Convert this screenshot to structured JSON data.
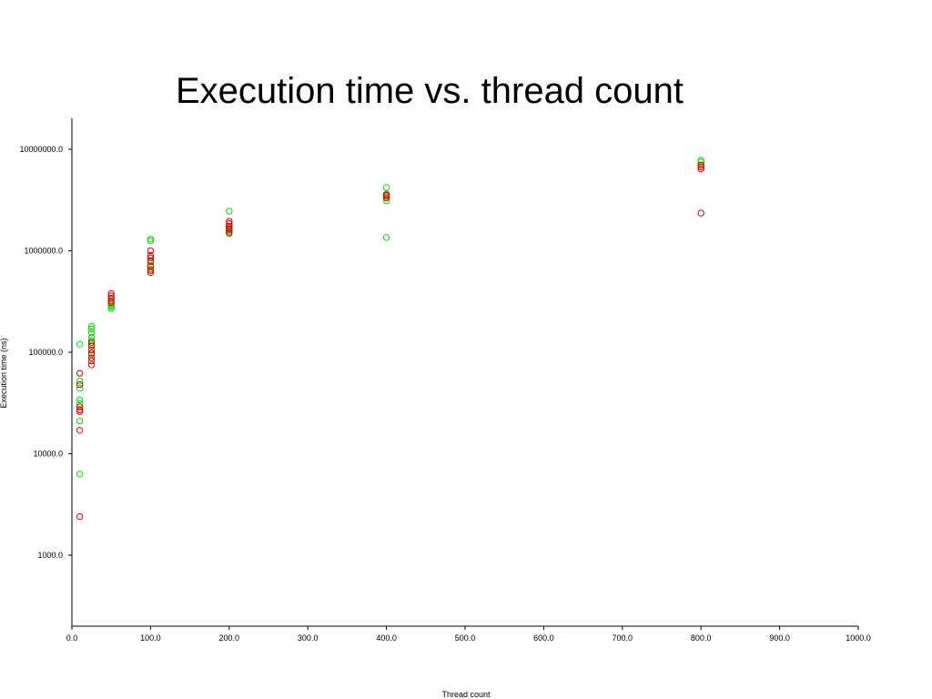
{
  "chart_data": {
    "type": "scatter",
    "title": "Execution time vs. thread count",
    "xlabel": "Thread count",
    "ylabel": "Execution time (ns)",
    "xlim": [
      0,
      1000
    ],
    "ylim": [
      200,
      20000000
    ],
    "yscale": "log",
    "grid": false,
    "legend": "none",
    "x_ticks": [
      "0.0",
      "100.0",
      "200.0",
      "300.0",
      "400.0",
      "500.0",
      "600.0",
      "700.0",
      "800.0",
      "900.0",
      "1000.0"
    ],
    "y_ticks": [
      "1000.0",
      "10000.0",
      "100000.0",
      "1000000.0",
      "10000000.0"
    ],
    "series": [
      {
        "color": "#00e000",
        "points": [
          [
            10,
            120000
          ],
          [
            10,
            52000
          ],
          [
            10,
            48000
          ],
          [
            10,
            44000
          ],
          [
            10,
            34000
          ],
          [
            10,
            31000
          ],
          [
            10,
            21000
          ],
          [
            10,
            6300
          ],
          [
            25,
            180000
          ],
          [
            25,
            170000
          ],
          [
            25,
            155000
          ],
          [
            25,
            140000
          ],
          [
            25,
            130000
          ],
          [
            25,
            120000
          ],
          [
            25,
            95000
          ],
          [
            50,
            300000
          ],
          [
            50,
            290000
          ],
          [
            50,
            280000
          ],
          [
            50,
            270000
          ],
          [
            100,
            1300000
          ],
          [
            100,
            1250000
          ],
          [
            100,
            800000
          ],
          [
            100,
            720000
          ],
          [
            100,
            660000
          ],
          [
            200,
            2450000
          ],
          [
            200,
            1700000
          ],
          [
            200,
            1550000
          ],
          [
            200,
            1480000
          ],
          [
            400,
            4200000
          ],
          [
            400,
            3400000
          ],
          [
            400,
            3100000
          ],
          [
            400,
            1350000
          ],
          [
            800,
            7800000
          ],
          [
            800,
            7500000
          ],
          [
            800,
            7000000
          ]
        ]
      },
      {
        "color": "#e00000",
        "points": [
          [
            10,
            62000
          ],
          [
            10,
            48000
          ],
          [
            10,
            29000
          ],
          [
            10,
            27000
          ],
          [
            10,
            26000
          ],
          [
            10,
            17000
          ],
          [
            10,
            2400
          ],
          [
            25,
            125000
          ],
          [
            25,
            115000
          ],
          [
            25,
            105000
          ],
          [
            25,
            98000
          ],
          [
            25,
            88000
          ],
          [
            25,
            82000
          ],
          [
            25,
            75000
          ],
          [
            50,
            380000
          ],
          [
            50,
            360000
          ],
          [
            50,
            340000
          ],
          [
            50,
            320000
          ],
          [
            50,
            310000
          ],
          [
            100,
            1000000
          ],
          [
            100,
            900000
          ],
          [
            100,
            850000
          ],
          [
            100,
            780000
          ],
          [
            100,
            700000
          ],
          [
            100,
            640000
          ],
          [
            100,
            610000
          ],
          [
            200,
            1950000
          ],
          [
            200,
            1850000
          ],
          [
            200,
            1750000
          ],
          [
            200,
            1650000
          ],
          [
            200,
            1600000
          ],
          [
            200,
            1500000
          ],
          [
            400,
            3600000
          ],
          [
            400,
            3500000
          ],
          [
            400,
            3300000
          ],
          [
            800,
            7000000
          ],
          [
            800,
            6700000
          ],
          [
            800,
            6400000
          ],
          [
            800,
            2350000
          ]
        ]
      }
    ]
  }
}
